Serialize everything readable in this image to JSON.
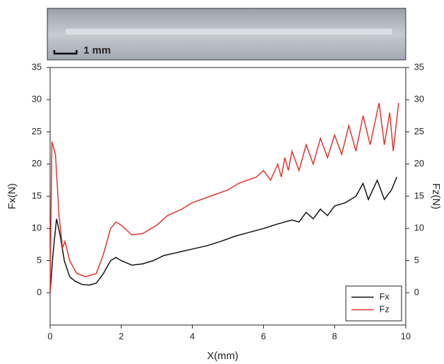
{
  "chart_data": {
    "type": "line",
    "scale_bar_label": "1 mm",
    "xlabel": "X(mm)",
    "ylabel": "Fx(N)",
    "y2label": "Fz(N)",
    "xlim": [
      0,
      10
    ],
    "xticks": [
      0,
      2,
      4,
      6,
      8,
      10
    ],
    "ylim": [
      -5,
      35
    ],
    "yticks": [
      0,
      5,
      10,
      15,
      20,
      25,
      30,
      35
    ],
    "y2lim": [
      -5,
      35
    ],
    "y2ticks": [
      0,
      5,
      10,
      15,
      20,
      25,
      30,
      35
    ],
    "y2color": "#e8302a",
    "legend": "lower right",
    "series": [
      {
        "name": "Fx",
        "color": "#111111",
        "x": [
          0,
          0.08,
          0.18,
          0.28,
          0.4,
          0.55,
          0.7,
          0.9,
          1.1,
          1.3,
          1.5,
          1.7,
          1.85,
          2.0,
          2.3,
          2.6,
          2.9,
          3.2,
          3.6,
          4.0,
          4.4,
          4.8,
          5.2,
          5.6,
          6.0,
          6.4,
          6.8,
          7.0,
          7.2,
          7.4,
          7.6,
          7.8,
          8.0,
          8.3,
          8.6,
          8.8,
          8.95,
          9.2,
          9.4,
          9.6,
          9.75
        ],
        "values": [
          0,
          6,
          11.5,
          9,
          5,
          2.5,
          1.8,
          1.3,
          1.2,
          1.5,
          3,
          5,
          5.5,
          5,
          4.3,
          4.5,
          5,
          5.8,
          6.3,
          6.8,
          7.3,
          8,
          8.8,
          9.4,
          10,
          10.7,
          11.3,
          11,
          12.5,
          11.5,
          13,
          12,
          13.5,
          14,
          15,
          17,
          14.5,
          17.5,
          14.5,
          16,
          18
        ]
      },
      {
        "name": "Fz",
        "color": "#e8302a",
        "axis": "y2",
        "x": [
          0,
          0.05,
          0.15,
          0.25,
          0.35,
          0.42,
          0.55,
          0.75,
          1.0,
          1.3,
          1.5,
          1.7,
          1.85,
          2.0,
          2.3,
          2.6,
          3.0,
          3.3,
          3.7,
          4.0,
          4.5,
          5.0,
          5.3,
          5.8,
          6.0,
          6.2,
          6.4,
          6.5,
          6.6,
          6.7,
          6.8,
          7.0,
          7.2,
          7.4,
          7.6,
          7.8,
          8.0,
          8.2,
          8.4,
          8.6,
          8.8,
          9.0,
          9.25,
          9.4,
          9.55,
          9.65,
          9.8
        ],
        "values": [
          0,
          23.5,
          21.5,
          12,
          7,
          8,
          5,
          3,
          2.5,
          3,
          6,
          10,
          11,
          10.5,
          9,
          9.2,
          10.5,
          12,
          13,
          14,
          15,
          16,
          17,
          18,
          19,
          17.5,
          20,
          18,
          21,
          19,
          22,
          19,
          23,
          20,
          24,
          21,
          24.5,
          21.5,
          26,
          22,
          27.5,
          23,
          29.5,
          23,
          28,
          22,
          29.5
        ]
      }
    ]
  }
}
